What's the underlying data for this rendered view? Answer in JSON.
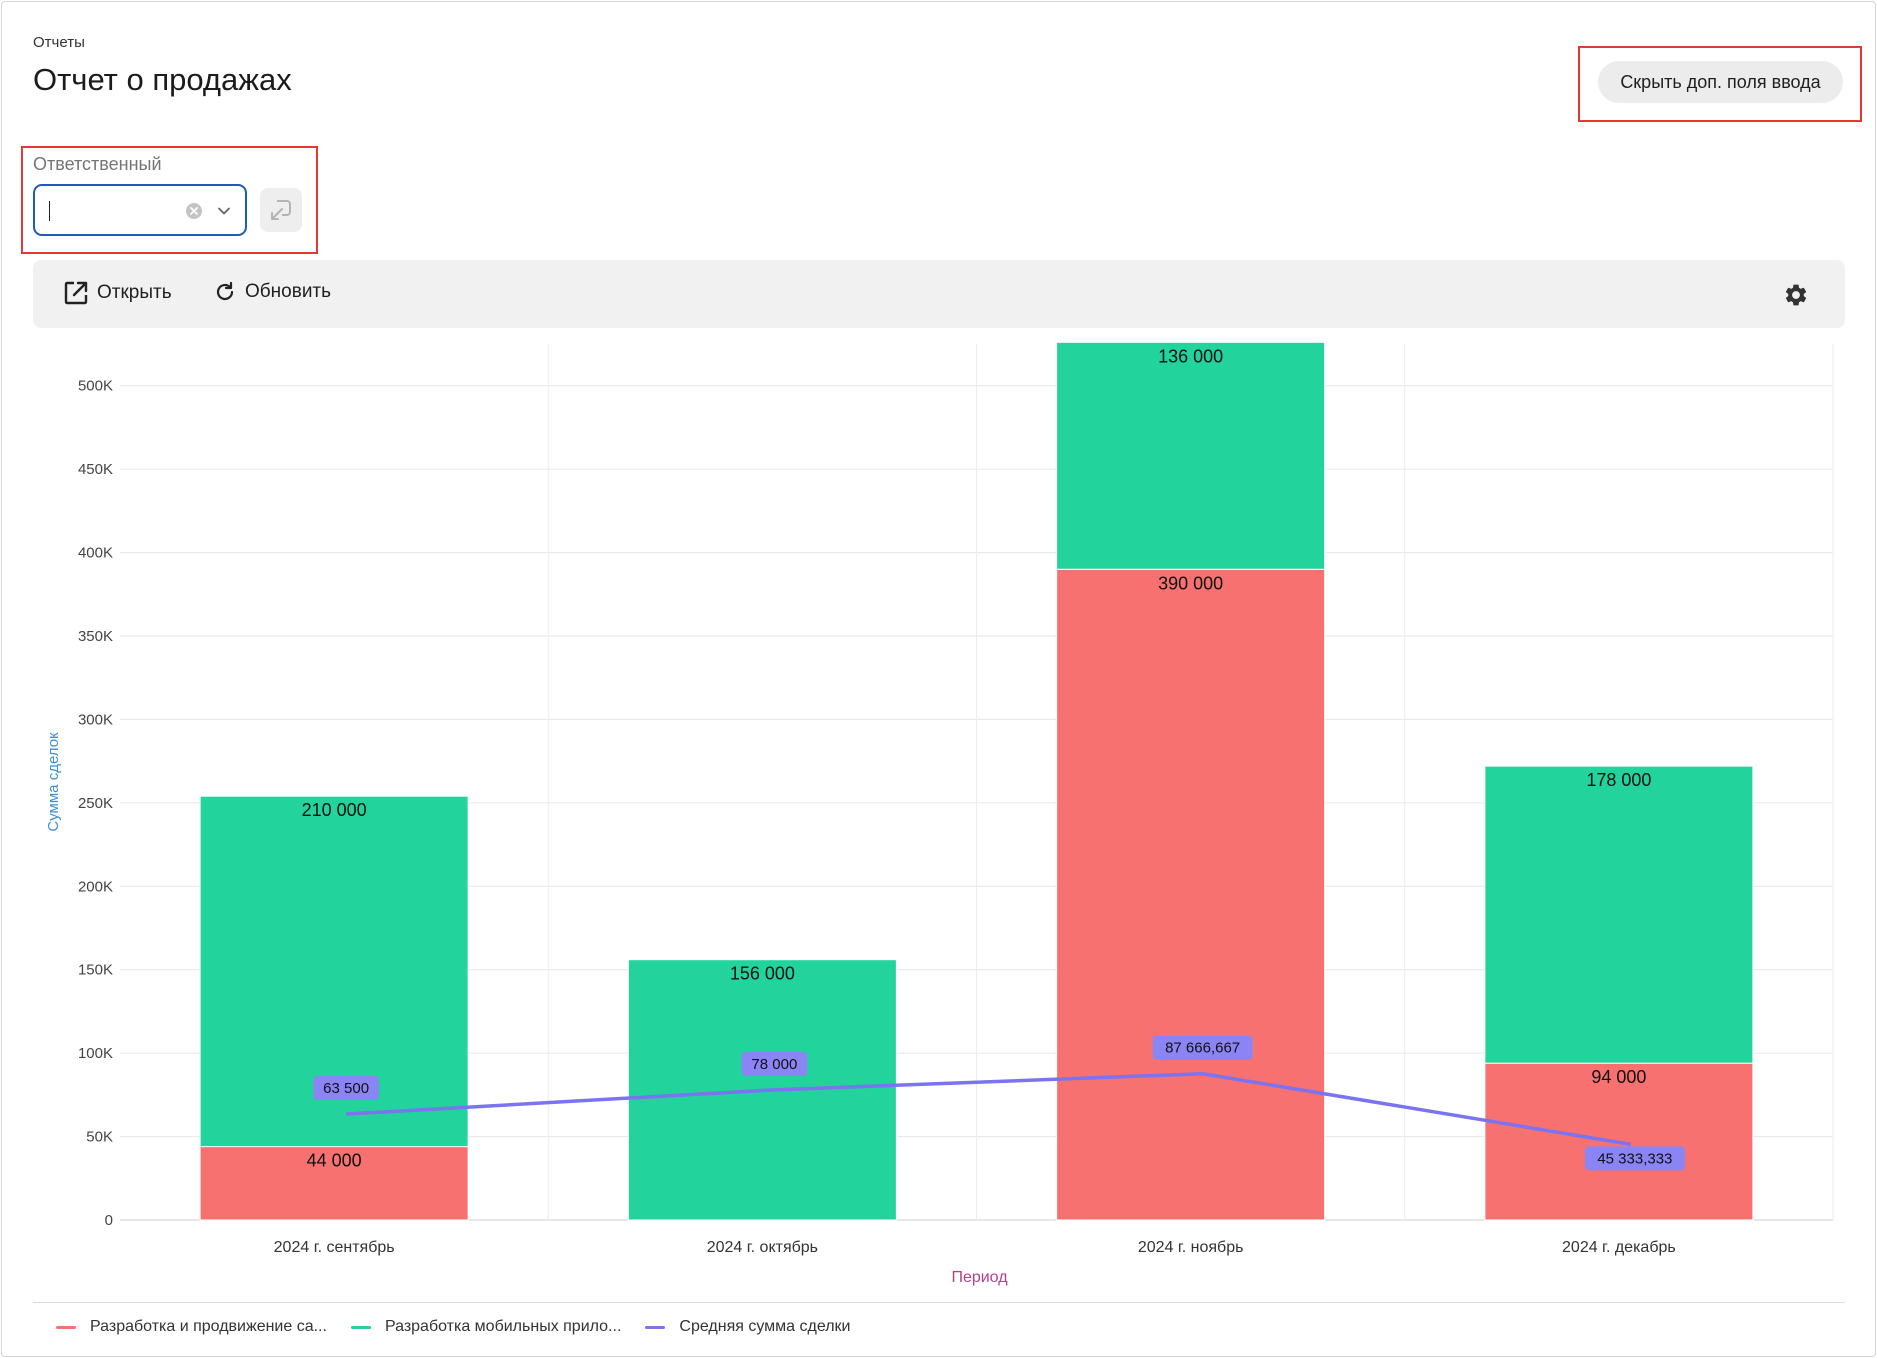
{
  "breadcrumb": "Отчеты",
  "page_title": "Отчет о продажах",
  "hide_fields_button": "Скрыть доп. поля ввода",
  "filter": {
    "label": "Ответственный",
    "value": ""
  },
  "toolbar": {
    "open_label": "Открыть",
    "refresh_label": "Обновить"
  },
  "colors": {
    "series_web": "#f87171",
    "series_mobile": "#22d39b",
    "avg": "#7b73f0",
    "highlight": "#e53935",
    "select_border": "#1f5bb5"
  },
  "chart_data": {
    "type": "bar",
    "stacked": true,
    "xlabel": "Период",
    "ylabel": "Сумма сделок",
    "ylim": [
      0,
      525000
    ],
    "y_ticks": [
      0,
      50000,
      100000,
      150000,
      200000,
      250000,
      300000,
      350000,
      400000,
      450000,
      500000
    ],
    "y_tick_labels": [
      "0",
      "50K",
      "100K",
      "150K",
      "200K",
      "250K",
      "300K",
      "350K",
      "400K",
      "450K",
      "500K"
    ],
    "categories": [
      "2024 г. сентябрь",
      "2024 г. октябрь",
      "2024 г. ноябрь",
      "2024 г. декабрь"
    ],
    "grid": true,
    "legend_position": "bottom-left",
    "series": [
      {
        "name": "Разработка и продвижение са...",
        "type": "bar",
        "color": "#f87171",
        "values": [
          44000,
          0,
          390000,
          94000
        ],
        "labels": [
          "44 000",
          "",
          "390 000",
          "94 000"
        ]
      },
      {
        "name": "Разработка мобильных прило...",
        "type": "bar",
        "color": "#22d39b",
        "values": [
          210000,
          156000,
          136000,
          178000
        ],
        "labels": [
          "210 000",
          "156 000",
          "136 000",
          "178 000"
        ]
      },
      {
        "name": "Средняя сумма сделки",
        "type": "line",
        "color": "#7b73f0",
        "values": [
          63500,
          78000,
          87666.667,
          45333.333
        ],
        "labels": [
          "63 500",
          "78 000",
          "87 666,667",
          "45 333,333"
        ]
      }
    ]
  }
}
